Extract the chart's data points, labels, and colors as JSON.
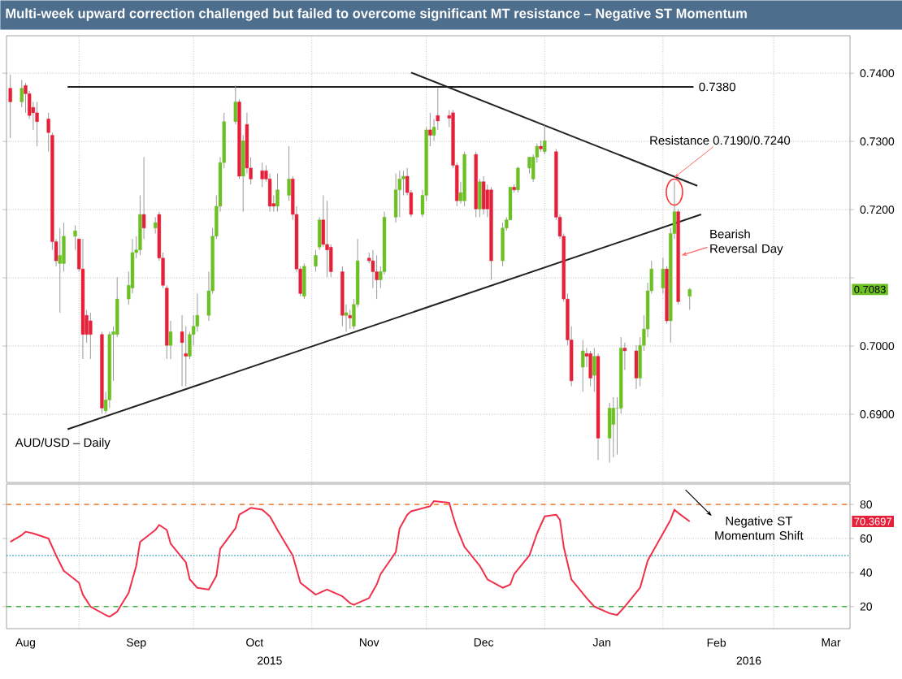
{
  "chart_data": [
    {
      "type": "candlestick",
      "title": "Multi-week upward correction challenged but failed to overcome significant MT resistance – Negative ST Momentum",
      "x": [
        "2015-08-14",
        "2015-08-17",
        "2015-08-18",
        "2015-08-19",
        "2015-08-20",
        "2015-08-21",
        "2015-08-24",
        "2015-08-25",
        "2015-08-26",
        "2015-08-27",
        "2015-08-28",
        "2015-08-31",
        "2015-09-01",
        "2015-09-02",
        "2015-09-03",
        "2015-09-04",
        "2015-09-07",
        "2015-09-08",
        "2015-09-09",
        "2015-09-10",
        "2015-09-11",
        "2015-09-14",
        "2015-09-15",
        "2015-09-16",
        "2015-09-17",
        "2015-09-18",
        "2015-09-21",
        "2015-09-22",
        "2015-09-23",
        "2015-09-24",
        "2015-09-25",
        "2015-09-28",
        "2015-09-29",
        "2015-09-30",
        "2015-10-01",
        "2015-10-02",
        "2015-10-05",
        "2015-10-06",
        "2015-10-07",
        "2015-10-08",
        "2015-10-09",
        "2015-10-12",
        "2015-10-13",
        "2015-10-14",
        "2015-10-15",
        "2015-10-16",
        "2015-10-19",
        "2015-10-20",
        "2015-10-21",
        "2015-10-22",
        "2015-10-23",
        "2015-10-26",
        "2015-10-27",
        "2015-10-28",
        "2015-10-29",
        "2015-10-30",
        "2015-11-02",
        "2015-11-03",
        "2015-11-04",
        "2015-11-05",
        "2015-11-06",
        "2015-11-09",
        "2015-11-10",
        "2015-11-11",
        "2015-11-12",
        "2015-11-13",
        "2015-11-16",
        "2015-11-17",
        "2015-11-18",
        "2015-11-19",
        "2015-11-20",
        "2015-11-23",
        "2015-11-24",
        "2015-11-25",
        "2015-11-26",
        "2015-11-27",
        "2015-11-30",
        "2015-12-01",
        "2015-12-02",
        "2015-12-03",
        "2015-12-04",
        "2015-12-07",
        "2015-12-08",
        "2015-12-09",
        "2015-12-10",
        "2015-12-11",
        "2015-12-14",
        "2015-12-15",
        "2015-12-16",
        "2015-12-17",
        "2015-12-18",
        "2015-12-21",
        "2015-12-22",
        "2015-12-23",
        "2015-12-24",
        "2015-12-25",
        "2015-12-28",
        "2015-12-29",
        "2015-12-30",
        "2015-12-31",
        "2016-01-01",
        "2016-01-04",
        "2016-01-05",
        "2016-01-06",
        "2016-01-07",
        "2016-01-08",
        "2016-01-11",
        "2016-01-12",
        "2016-01-13",
        "2016-01-14",
        "2016-01-15",
        "2016-01-18",
        "2016-01-19",
        "2016-01-20",
        "2016-01-21",
        "2016-01-22",
        "2016-01-25",
        "2016-01-26",
        "2016-01-27",
        "2016-01-28",
        "2016-01-29",
        "2016-02-01",
        "2016-02-02",
        "2016-02-03",
        "2016-02-04",
        "2016-02-05",
        "2016-02-08"
      ],
      "ohlc": [
        [
          0.7378,
          0.7398,
          0.7305,
          0.7358
        ],
        [
          0.7358,
          0.739,
          0.735,
          0.7378
        ],
        [
          0.7382,
          0.7386,
          0.7342,
          0.737
        ],
        [
          0.737,
          0.7374,
          0.7333,
          0.7338
        ],
        [
          0.735,
          0.7358,
          0.7317,
          0.7342
        ],
        [
          0.7342,
          0.7358,
          0.7293,
          0.7329
        ],
        [
          0.7333,
          0.7342,
          0.7285,
          0.7313
        ],
        [
          0.7309,
          0.7313,
          0.7141,
          0.7153
        ],
        [
          0.7153,
          0.7157,
          0.7117,
          0.7125
        ],
        [
          0.7121,
          0.7173,
          0.7049,
          0.7133
        ],
        [
          0.7121,
          0.7181,
          0.7109,
          0.7161
        ],
        [
          0.7161,
          0.7177,
          0.7141,
          0.7169
        ],
        [
          0.7157,
          0.7157,
          0.7109,
          0.7113
        ],
        [
          0.7113,
          0.7157,
          0.6981,
          0.7017
        ],
        [
          0.7045,
          0.7053,
          0.7005,
          0.7017
        ],
        [
          0.7037,
          0.7049,
          0.6981,
          0.7017
        ],
        [
          0.7017,
          0.7021,
          0.6901,
          0.6909
        ],
        [
          0.6905,
          0.6933,
          0.6901,
          0.6921
        ],
        [
          0.6921,
          0.7021,
          0.6909,
          0.7017
        ],
        [
          0.7017,
          0.7029,
          0.6949,
          0.7021
        ],
        [
          0.7017,
          0.7101,
          0.7013,
          0.7069
        ],
        [
          0.7069,
          0.7109,
          0.7061,
          0.7089
        ],
        [
          0.7085,
          0.7157,
          0.7077,
          0.7137
        ],
        [
          0.7137,
          0.7161,
          0.7129,
          0.7141
        ],
        [
          0.7141,
          0.7221,
          0.7133,
          0.7193
        ],
        [
          0.7193,
          0.7277,
          0.7157,
          0.7173
        ],
        [
          0.7173,
          0.7189,
          0.7165,
          0.7181
        ],
        [
          0.7193,
          0.7197,
          0.7125,
          0.7129
        ],
        [
          0.7129,
          0.7137,
          0.7085,
          0.7089
        ],
        [
          0.7085,
          0.7089,
          0.6981,
          0.7001
        ],
        [
          0.7001,
          0.7037,
          0.6981,
          0.7021
        ],
        [
          0.7021,
          0.7045,
          0.6941,
          0.7005
        ],
        [
          0.6989,
          0.7029,
          0.6941,
          0.6985
        ],
        [
          0.6985,
          0.7021,
          0.6981,
          0.7017
        ],
        [
          0.7017,
          0.7045,
          0.7001,
          0.7029
        ],
        [
          0.7029,
          0.7077,
          0.7021,
          0.7045
        ],
        [
          0.7045,
          0.7109,
          0.7037,
          0.7081
        ],
        [
          0.7081,
          0.7173,
          0.7077,
          0.7161
        ],
        [
          0.7161,
          0.7221,
          0.7157,
          0.7205
        ],
        [
          0.7205,
          0.7277,
          0.7197,
          0.7269
        ],
        [
          0.7269,
          0.7342,
          0.7261,
          0.7329
        ],
        [
          0.7329,
          0.7382,
          0.7325,
          0.7358
        ],
        [
          0.7358,
          0.7362,
          0.7245,
          0.7249
        ],
        [
          0.7249,
          0.7309,
          0.7197,
          0.7301
        ],
        [
          0.7325,
          0.7342,
          0.7253,
          0.7261
        ],
        [
          0.7261,
          0.7277,
          0.7237,
          0.7245
        ],
        [
          0.7257,
          0.7269,
          0.7233,
          0.7245
        ],
        [
          0.7257,
          0.7265,
          0.7241,
          0.7245
        ],
        [
          0.7245,
          0.7253,
          0.7197,
          0.7205
        ],
        [
          0.7209,
          0.7221,
          0.7197,
          0.7205
        ],
        [
          0.7205,
          0.7253,
          0.7197,
          0.7229
        ],
        [
          0.7221,
          0.7293,
          0.7213,
          0.7245
        ],
        [
          0.7245,
          0.7249,
          0.7185,
          0.7193
        ],
        [
          0.7193,
          0.7205,
          0.7109,
          0.7113
        ],
        [
          0.7113,
          0.7117,
          0.7073,
          0.7077
        ],
        [
          0.7073,
          0.7121,
          0.7069,
          0.7117
        ],
        [
          0.7117,
          0.7141,
          0.7109,
          0.7133
        ],
        [
          0.7145,
          0.7189,
          0.7141,
          0.7185
        ],
        [
          0.7185,
          0.7221,
          0.7145,
          0.7149
        ],
        [
          0.7149,
          0.7213,
          0.7101,
          0.7141
        ],
        [
          0.7145,
          0.7149,
          0.7101,
          0.7109
        ],
        [
          0.7109,
          0.7117,
          0.7029,
          0.7045
        ],
        [
          0.7045,
          0.7061,
          0.7021,
          0.7049
        ],
        [
          0.7045,
          0.7053,
          0.7025,
          0.7041
        ],
        [
          0.7029,
          0.7069,
          0.7025,
          0.7061
        ],
        [
          0.7061,
          0.7157,
          0.7057,
          0.7125
        ],
        [
          0.7129,
          0.7137,
          0.7121,
          0.7125
        ],
        [
          0.7125,
          0.7141,
          0.7085,
          0.7109
        ],
        [
          0.7109,
          0.7133,
          0.7069,
          0.7097
        ],
        [
          0.7097,
          0.7117,
          0.7085,
          0.7109
        ],
        [
          0.7109,
          0.7197,
          0.7105,
          0.7189
        ],
        [
          0.7189,
          0.7253,
          0.7181,
          0.7229
        ],
        [
          0.7229,
          0.7257,
          0.7189,
          0.7245
        ],
        [
          0.7245,
          0.7257,
          0.7221,
          0.7249
        ],
        [
          0.7249,
          0.7261,
          0.7221,
          0.7225
        ],
        [
          0.7225,
          0.7229,
          0.7189,
          0.7193
        ],
        [
          0.7193,
          0.7229,
          0.7189,
          0.7221
        ],
        [
          0.7221,
          0.7321,
          0.7213,
          0.7317
        ],
        [
          0.7317,
          0.7342,
          0.7293,
          0.7309
        ],
        [
          0.7309,
          0.7333,
          0.7301,
          0.7321
        ],
        [
          0.7338,
          0.7378,
          0.7317,
          0.733
        ],
        [
          0.7338,
          0.7346,
          0.7321,
          0.7334
        ],
        [
          0.7342,
          0.7346,
          0.7261,
          0.7265
        ],
        [
          0.7265,
          0.7269,
          0.7205,
          0.7213
        ],
        [
          0.7213,
          0.7241,
          0.7209,
          0.7225
        ],
        [
          0.7213,
          0.7285,
          0.7205,
          0.7281
        ],
        [
          0.7281,
          0.7285,
          0.7189,
          0.7201
        ],
        [
          0.7201,
          0.7245,
          0.7189,
          0.7241
        ],
        [
          0.7241,
          0.7249,
          0.7193,
          0.7201
        ],
        [
          0.7229,
          0.7237,
          0.7189,
          0.7201
        ],
        [
          0.7229,
          0.7233,
          0.7097,
          0.7125
        ],
        [
          0.7125,
          0.7181,
          0.7117,
          0.7173
        ],
        [
          0.7173,
          0.7189,
          0.7169,
          0.7185
        ],
        [
          0.7185,
          0.7233,
          0.7185,
          0.7233
        ],
        [
          0.7233,
          0.7237,
          0.7225,
          0.7229
        ],
        [
          0.7229,
          0.7263,
          0.7225,
          0.7261
        ],
        [
          0.7261,
          0.7277,
          0.7253,
          0.7277
        ],
        [
          0.7245,
          0.7281,
          0.7241,
          0.7277
        ],
        [
          0.7277,
          0.7297,
          0.7269,
          0.7293
        ],
        [
          0.7293,
          0.7301,
          0.7285,
          0.7289
        ],
        [
          0.7285,
          0.7325,
          0.7281,
          0.7301
        ],
        [
          0.7285,
          0.7289,
          0.7185,
          0.7189
        ],
        [
          0.7189,
          0.7193,
          0.7157,
          0.7161
        ],
        [
          0.7161,
          0.7165,
          0.7065,
          0.7069
        ],
        [
          0.7069,
          0.7077,
          0.7001,
          0.7009
        ],
        [
          0.7009,
          0.7029,
          0.6941,
          0.6949
        ],
        [
          0.6969,
          0.7009,
          0.6933,
          0.6993
        ],
        [
          0.6989,
          0.6997,
          0.6969,
          0.6985
        ],
        [
          0.6989,
          0.6993,
          0.6941,
          0.6953
        ],
        [
          0.6957,
          0.6997,
          0.6933,
          0.6985
        ],
        [
          0.6985,
          0.6989,
          0.6833,
          0.6865
        ],
        [
          0.6865,
          0.6917,
          0.6829,
          0.6909
        ],
        [
          0.6885,
          0.6925,
          0.6837,
          0.6909
        ],
        [
          0.6909,
          0.6925,
          0.6841,
          0.6909
        ],
        [
          0.6909,
          0.7013,
          0.6901,
          0.6997
        ],
        [
          0.6997,
          0.7005,
          0.6965,
          0.6993
        ],
        [
          0.6993,
          0.7001,
          0.6937,
          0.6953
        ],
        [
          0.6953,
          0.7013,
          0.6941,
          0.7001
        ],
        [
          0.7001,
          0.7045,
          0.6993,
          0.7025
        ],
        [
          0.7025,
          0.7093,
          0.7013,
          0.7081
        ],
        [
          0.7081,
          0.7125,
          0.7077,
          0.7113
        ],
        [
          0.7085,
          0.7129,
          0.7077,
          0.7113
        ],
        [
          0.7113,
          0.7117,
          0.7033,
          0.7037
        ],
        [
          0.7037,
          0.7173,
          0.7005,
          0.7165
        ],
        [
          0.7165,
          0.7241,
          0.7157,
          0.7197
        ],
        [
          0.7197,
          0.7201,
          0.7061,
          0.7065
        ],
        [
          0.7073,
          0.7085,
          0.7053,
          0.7083
        ]
      ],
      "series": [
        {
          "type": "line",
          "color": "#222222",
          "x": [
            "2015-08-29",
            "2016-02-09"
          ],
          "values": [
            0.738,
            0.738
          ]
        },
        {
          "type": "line",
          "color": "#222222",
          "x": [
            "2015-11-27",
            "2016-02-10"
          ],
          "values": [
            0.7401,
            0.7235
          ]
        },
        {
          "type": "line",
          "color": "#222222",
          "x": [
            "2015-08-29",
            "2016-02-11"
          ],
          "values": [
            0.6878,
            0.7193
          ]
        }
      ],
      "xlim": [
        "2015-08-13",
        "2016-03-21"
      ],
      "xticks": [
        {
          "value": "2015-09-01",
          "label": null
        },
        {
          "value": "2015-10-01",
          "label": null
        },
        {
          "value": "2015-11-01",
          "label": null
        },
        {
          "value": "2015-12-01",
          "label": null
        },
        {
          "value": "2016-01-01",
          "label": null
        },
        {
          "value": "2016-02-01",
          "label": null
        },
        {
          "value": "2016-03-01",
          "label": null
        }
      ],
      "ylim": [
        0.68,
        0.7455
      ],
      "yticks": [
        {
          "value": 0.69,
          "label": "0.6900"
        },
        {
          "value": 0.7,
          "label": "0.7000"
        },
        {
          "value": 0.71,
          "label": null
        },
        {
          "value": 0.72,
          "label": "0.7200"
        },
        {
          "value": 0.73,
          "label": "0.7300"
        },
        {
          "value": 0.74,
          "label": "0.7400"
        }
      ],
      "tick_labels": "y",
      "grid": true,
      "annotations": [
        "AUD/USD – Daily",
        {
          "text": "0.7380",
          "x": "2016-02-09",
          "y": 0.738
        },
        {
          "text": "Resistance 0.7190/0.7240",
          "x": "2016-02-04",
          "y": 0.724
        },
        {
          "text": "Bearish Reversal Day",
          "x": "2016-02-05",
          "y": 0.7133
        },
        "0.7083"
      ]
    },
    {
      "type": "line",
      "color": "#f0304a",
      "x": [
        "2015-08-14",
        "2015-08-17",
        "2015-08-18",
        "2015-08-20",
        "2015-08-24",
        "2015-08-26",
        "2015-08-28",
        "2015-09-01",
        "2015-09-02",
        "2015-09-04",
        "2015-09-08",
        "2015-09-09",
        "2015-09-11",
        "2015-09-14",
        "2015-09-16",
        "2015-09-17",
        "2015-09-21",
        "2015-09-22",
        "2015-09-24",
        "2015-09-25",
        "2015-09-29",
        "2015-09-30",
        "2015-10-02",
        "2015-10-05",
        "2015-10-07",
        "2015-10-08",
        "2015-10-12",
        "2015-10-13",
        "2015-10-16",
        "2015-10-19",
        "2015-10-21",
        "2015-10-23",
        "2015-10-27",
        "2015-10-29",
        "2015-11-02",
        "2015-11-04",
        "2015-11-05",
        "2015-11-09",
        "2015-11-11",
        "2015-11-12",
        "2015-11-16",
        "2015-11-18",
        "2015-11-19",
        "2015-11-23",
        "2015-11-24",
        "2015-11-26",
        "2015-11-27",
        "2015-12-02",
        "2015-12-03",
        "2015-12-07",
        "2015-12-08",
        "2015-12-09",
        "2015-12-11",
        "2015-12-15",
        "2015-12-17",
        "2015-12-21",
        "2015-12-23",
        "2015-12-24",
        "2015-12-28",
        "2015-12-30",
        "2016-01-01",
        "2016-01-04",
        "2016-01-05",
        "2016-01-06",
        "2016-01-08",
        "2016-01-12",
        "2016-01-14",
        "2016-01-18",
        "2016-01-20",
        "2016-01-22",
        "2016-01-26",
        "2016-01-28",
        "2016-02-01",
        "2016-02-03",
        "2016-02-04",
        "2016-02-05",
        "2016-02-08"
      ],
      "values": [
        58,
        62,
        64,
        63,
        60,
        50,
        41,
        34,
        27,
        20,
        15,
        14,
        17,
        28,
        44,
        58,
        65,
        68,
        65,
        57,
        46,
        36,
        31,
        30,
        38,
        54,
        66,
        74,
        78,
        77,
        73,
        65,
        50,
        34,
        27,
        29,
        30,
        26,
        22,
        21,
        25,
        33,
        39,
        52,
        66,
        74,
        76,
        79,
        82,
        81,
        73,
        66,
        55,
        44,
        36,
        31,
        33,
        39,
        50,
        63,
        73,
        74,
        71,
        55,
        36,
        25,
        20,
        16,
        15,
        20,
        31,
        47,
        63,
        71,
        77,
        75,
        70
      ],
      "xlim": [
        "2015-08-13",
        "2016-03-21"
      ],
      "xticks": [
        {
          "value": "2015-08-18",
          "label": "Aug"
        },
        {
          "value": "2015-09-01",
          "label": null
        },
        {
          "value": "2015-09-16",
          "label": "Sep"
        },
        {
          "value": "2015-10-01",
          "label": null
        },
        {
          "value": "2015-10-17",
          "label": "Oct"
        },
        {
          "value": "2015-11-01",
          "label": null
        },
        {
          "value": "2015-11-16",
          "label": "Nov"
        },
        {
          "value": "2015-12-01",
          "label": null
        },
        {
          "value": "2015-12-16",
          "label": "Dec"
        },
        {
          "value": "2016-01-01",
          "label": null
        },
        {
          "value": "2016-01-16",
          "label": "Jan"
        },
        {
          "value": "2016-02-01",
          "label": null
        },
        {
          "value": "2016-02-15",
          "label": "Feb"
        },
        {
          "value": "2016-03-01",
          "label": null
        },
        {
          "value": "2016-03-16",
          "label": "Mar"
        }
      ],
      "ylim": [
        7,
        92
      ],
      "yticks": [
        20,
        40,
        60,
        80
      ],
      "grid": true,
      "ref_lines": [
        {
          "axis": "y",
          "value": 80,
          "color": "#f08a4b",
          "line_style": "dashed"
        },
        {
          "axis": "y",
          "value": 50,
          "color": "#3aa6b9",
          "line_style": "dotted"
        },
        {
          "axis": "y",
          "value": 20,
          "color": "#3cb043",
          "line_style": "dashed"
        }
      ],
      "annotations": [
        "2015",
        "2016",
        "Negative ST Momentum Shift",
        "70.3697"
      ]
    }
  ]
}
